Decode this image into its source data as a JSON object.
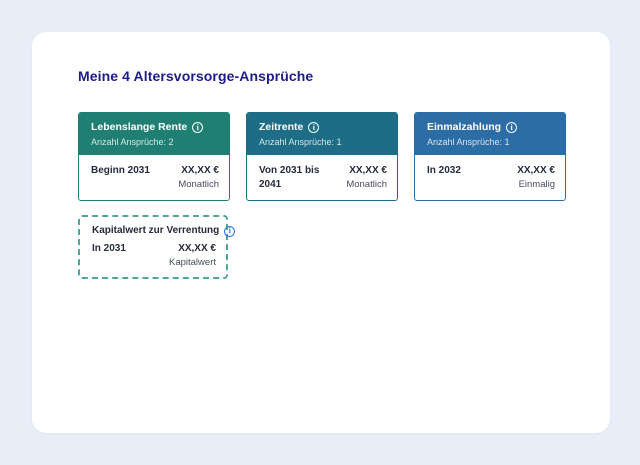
{
  "page": {
    "title": "Meine 4 Altersvorsorge-Ansprüche"
  },
  "icons": {
    "info_glyph": "i"
  },
  "colors": {
    "page_background": "#e9edf8",
    "panel_background": "#ffffff",
    "title_text": "#1e1b8a",
    "capital_dashed_border": "#4fa49b",
    "capital_info_icon": "#2f74d8"
  },
  "cards": [
    {
      "title": "Lebenslange Rente",
      "subtitle": "Anzahl Ansprüche: 2",
      "label": "Beginn 2031",
      "amount": "XX,XX €",
      "period": "Monatlich",
      "colors": {
        "header": "#1e7f72"
      }
    },
    {
      "title": "Zeitrente",
      "subtitle": "Anzahl Ansprüche: 1",
      "label": "Von 2031 bis 2041",
      "amount": "XX,XX €",
      "period": "Monatlich",
      "colors": {
        "header": "#1d6d86"
      }
    },
    {
      "title": "Einmalzahlung",
      "subtitle": "Anzahl Ansprüche: 1",
      "label": "In 2032",
      "amount": "XX,XX €",
      "period": "Einmalig",
      "colors": {
        "header": "#2c6da6"
      }
    }
  ],
  "capital_card": {
    "title": "Kapitalwert zur Verrentung",
    "label": "In 2031",
    "amount": "XX,XX €",
    "period": "Kapitalwert"
  }
}
